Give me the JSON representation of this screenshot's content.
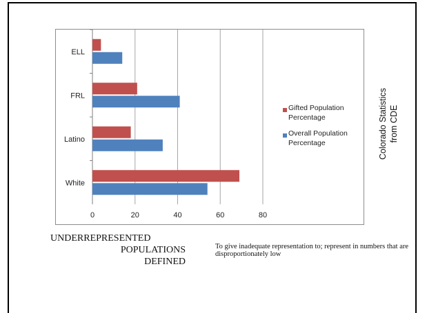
{
  "chart_data": {
    "type": "bar",
    "orientation": "horizontal",
    "categories": [
      "ELL",
      "FRL",
      "Latino",
      "White"
    ],
    "series": [
      {
        "name": "Gifted Population Percentage",
        "values": [
          4,
          21,
          18,
          69
        ],
        "color": "#c0504d"
      },
      {
        "name": "Overall Population Percentage",
        "values": [
          14,
          41,
          33,
          54
        ],
        "color": "#4f81bd"
      }
    ],
    "xlim": [
      0,
      80
    ],
    "xticks": [
      "0",
      "20",
      "40",
      "60",
      "80"
    ],
    "grid": true,
    "legend_position": "right",
    "title": "",
    "xlabel": "",
    "ylabel": ""
  },
  "legend": {
    "gifted": {
      "line1": "Gifted Population",
      "line2": "Percentage"
    },
    "overall": {
      "line1": "Overall Population",
      "line2": "Percentage"
    }
  },
  "side_note": {
    "line1": "Colorado Statistics",
    "line2": "from CDE"
  },
  "heading": {
    "line1": "UNDERREPRESENTED",
    "line2": "POPULATIONS",
    "line3": "DEFINED"
  },
  "definition": "To give inadequate representation to; represent in numbers that are disproportionately low",
  "colors": {
    "gifted": "#c0504d",
    "overall": "#4f81bd",
    "grid": "#a6a6a6",
    "border": "#8c8c8c"
  }
}
